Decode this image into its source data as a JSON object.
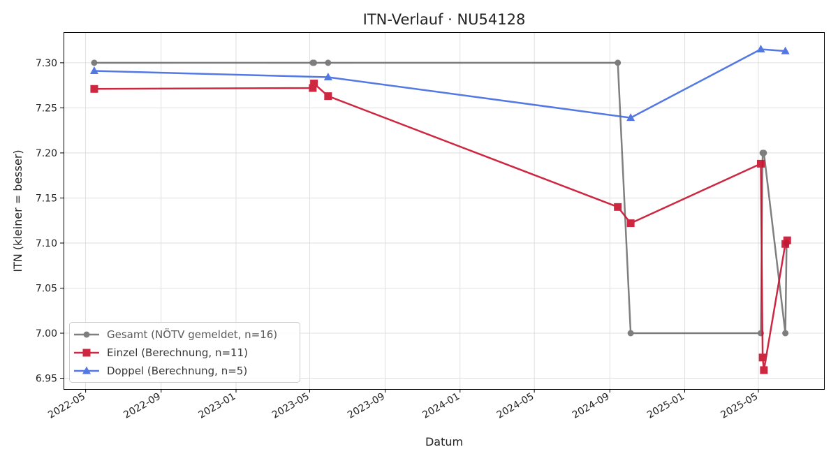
{
  "chart_data": {
    "type": "line",
    "title": "ITN-Verlauf · NU54128",
    "xlabel": "Datum",
    "ylabel": "ITN  (kleiner = besser)",
    "x_axis_type": "date",
    "xlim": [
      "2022-03-26",
      "2025-08-16"
    ],
    "ylim": [
      6.938,
      7.334
    ],
    "grid": true,
    "legend_position": "lower-left",
    "x_ticks": [
      "2022-05",
      "2022-09",
      "2023-01",
      "2023-05",
      "2023-09",
      "2024-01",
      "2024-05",
      "2024-09",
      "2025-01",
      "2025-05"
    ],
    "y_ticks": [
      "6.95",
      "7.00",
      "7.05",
      "7.10",
      "7.15",
      "7.20",
      "7.25",
      "7.30"
    ],
    "series": [
      {
        "name": "Gesamt (NÖTV gemeldet, n=16)",
        "color": "#555555",
        "marker": "circle",
        "points": [
          {
            "x": "2022-05-15",
            "y": 7.3
          },
          {
            "x": "2023-05-06",
            "y": 7.3
          },
          {
            "x": "2023-05-08",
            "y": 7.3
          },
          {
            "x": "2023-05-31",
            "y": 7.3
          },
          {
            "x": "2024-09-14",
            "y": 7.3
          },
          {
            "x": "2024-10-05",
            "y": 7.0
          },
          {
            "x": "2025-05-05",
            "y": 7.0
          },
          {
            "x": "2025-05-08",
            "y": 7.2
          },
          {
            "x": "2025-05-10",
            "y": 7.2
          },
          {
            "x": "2025-06-14",
            "y": 7.0
          },
          {
            "x": "2025-06-16",
            "y": 7.1
          }
        ]
      },
      {
        "name": "Einzel (Berechnung, n=11)",
        "color": "#c8102e",
        "marker": "square",
        "points": [
          {
            "x": "2022-05-15",
            "y": 7.271
          },
          {
            "x": "2023-05-06",
            "y": 7.272
          },
          {
            "x": "2023-05-08",
            "y": 7.277
          },
          {
            "x": "2023-05-31",
            "y": 7.263
          },
          {
            "x": "2024-09-14",
            "y": 7.14
          },
          {
            "x": "2024-10-05",
            "y": 7.122
          },
          {
            "x": "2025-05-05",
            "y": 7.188
          },
          {
            "x": "2025-05-08",
            "y": 6.973
          },
          {
            "x": "2025-05-10",
            "y": 6.959
          },
          {
            "x": "2025-06-14",
            "y": 7.099
          },
          {
            "x": "2025-06-17",
            "y": 7.103
          }
        ]
      },
      {
        "name": "Doppel (Berechnung, n=5)",
        "color": "#4169e1",
        "marker": "triangle",
        "points": [
          {
            "x": "2022-05-15",
            "y": 7.291
          },
          {
            "x": "2023-05-31",
            "y": 7.284
          },
          {
            "x": "2024-10-05",
            "y": 7.239
          },
          {
            "x": "2025-05-05",
            "y": 7.315
          },
          {
            "x": "2025-06-14",
            "y": 7.313
          }
        ]
      }
    ]
  }
}
